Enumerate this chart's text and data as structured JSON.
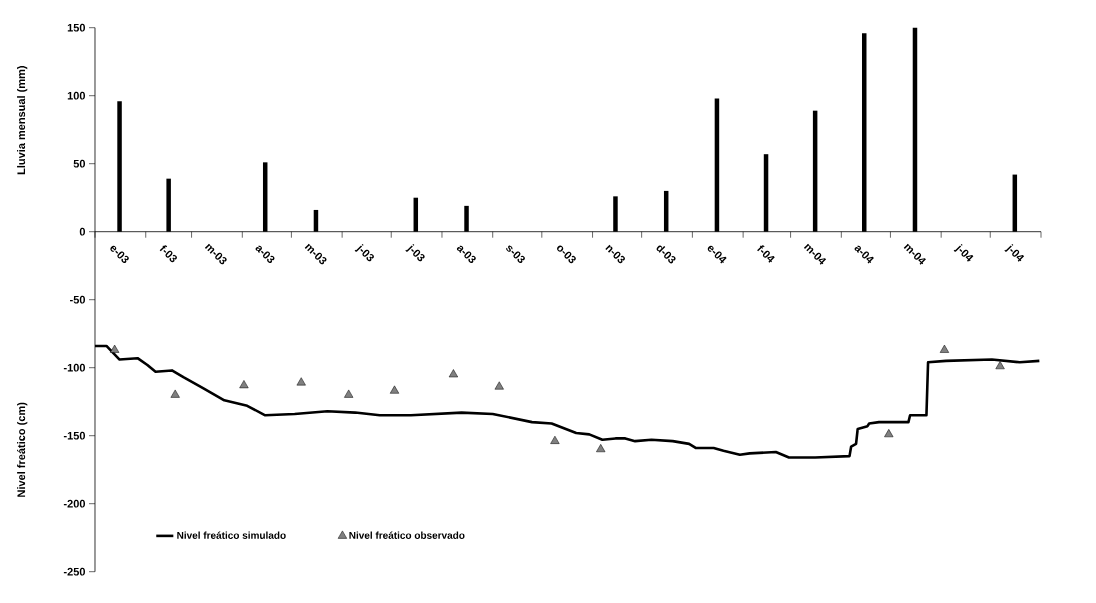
{
  "chart_data": {
    "type": "bar",
    "ylabel": "Lluvia mensual (mm)",
    "annotations": [
      "Nivel freático (cm)"
    ],
    "x": [
      "2003-01-16",
      "2003-02-15",
      "2003-03-16",
      "2003-04-15",
      "2003-05-16",
      "2003-06-15",
      "2003-07-16",
      "2003-08-16",
      "2003-09-15",
      "2003-10-16",
      "2003-11-15",
      "2003-12-16",
      "2004-01-16",
      "2004-02-15",
      "2004-03-16",
      "2004-04-15",
      "2004-05-16",
      "2004-06-15",
      "2004-07-16"
    ],
    "xlim": [
      "2003-01-01",
      "2004-08-01"
    ],
    "xticks": [
      {
        "value": "2003-01-01",
        "label": null
      },
      {
        "value": "2003-01-16",
        "label": "e-03"
      },
      {
        "value": "2003-02-01",
        "label": null
      },
      {
        "value": "2003-02-15",
        "label": "f-03"
      },
      {
        "value": "2003-03-01",
        "label": null
      },
      {
        "value": "2003-03-16",
        "label": "m-03"
      },
      {
        "value": "2003-04-01",
        "label": null
      },
      {
        "value": "2003-04-15",
        "label": "a-03"
      },
      {
        "value": "2003-05-01",
        "label": null
      },
      {
        "value": "2003-05-16",
        "label": "m-03"
      },
      {
        "value": "2003-06-01",
        "label": null
      },
      {
        "value": "2003-06-15",
        "label": "j-03"
      },
      {
        "value": "2003-07-01",
        "label": null
      },
      {
        "value": "2003-07-16",
        "label": "j-03"
      },
      {
        "value": "2003-08-01",
        "label": null
      },
      {
        "value": "2003-08-16",
        "label": "a-03"
      },
      {
        "value": "2003-09-01",
        "label": null
      },
      {
        "value": "2003-09-15",
        "label": "s-03"
      },
      {
        "value": "2003-10-01",
        "label": null
      },
      {
        "value": "2003-10-16",
        "label": "o-03"
      },
      {
        "value": "2003-11-01",
        "label": null
      },
      {
        "value": "2003-11-15",
        "label": "n-03"
      },
      {
        "value": "2003-12-01",
        "label": null
      },
      {
        "value": "2003-12-16",
        "label": "d-03"
      },
      {
        "value": "2004-01-01",
        "label": null
      },
      {
        "value": "2004-01-16",
        "label": "e-04"
      },
      {
        "value": "2004-02-01",
        "label": null
      },
      {
        "value": "2004-02-15",
        "label": "f-04"
      },
      {
        "value": "2004-03-01",
        "label": null
      },
      {
        "value": "2004-03-16",
        "label": "m-04"
      },
      {
        "value": "2004-04-01",
        "label": null
      },
      {
        "value": "2004-04-15",
        "label": "a-04"
      },
      {
        "value": "2004-05-01",
        "label": null
      },
      {
        "value": "2004-05-16",
        "label": "m-04"
      },
      {
        "value": "2004-06-01",
        "label": null
      },
      {
        "value": "2004-06-15",
        "label": "j-04"
      },
      {
        "value": "2004-07-01",
        "label": null
      },
      {
        "value": "2004-07-16",
        "label": "j-04"
      },
      {
        "value": "2004-08-01",
        "label": null
      }
    ],
    "ylim": [
      -250,
      150
    ],
    "yticks": [
      -250,
      -200,
      -150,
      -100,
      -50,
      0,
      50,
      100,
      150
    ],
    "legend": "bottom left",
    "series": [
      {
        "color": "#000000",
        "values": [
          96,
          39,
          0,
          51,
          16,
          0,
          25,
          19,
          0,
          0,
          26,
          30,
          98,
          57,
          89,
          146,
          150,
          0,
          42
        ]
      },
      {
        "type": "line",
        "name": "Nivel freático simulado",
        "color": "#000000",
        "line_style": "solid",
        "x": [
          "2003-01-01",
          "2003-01-08",
          "2003-01-16",
          "2003-01-27",
          "2003-02-02",
          "2003-02-07",
          "2003-02-17",
          "2003-02-24",
          "2003-03-08",
          "2003-03-21",
          "2003-04-04",
          "2003-04-15",
          "2003-05-03",
          "2003-05-23",
          "2003-06-09",
          "2003-06-24",
          "2003-07-13",
          "2003-08-13",
          "2003-09-01",
          "2003-09-13",
          "2003-09-25",
          "2003-10-07",
          "2003-10-22",
          "2003-10-30",
          "2003-11-07",
          "2003-11-15",
          "2003-11-21",
          "2003-11-27",
          "2003-12-07",
          "2003-12-20",
          "2003-12-30",
          "2004-01-03",
          "2004-01-14",
          "2004-01-20",
          "2004-01-30",
          "2004-02-05",
          "2004-02-21",
          "2004-02-29",
          "2004-03-16",
          "2004-04-06",
          "2004-04-07",
          "2004-04-10",
          "2004-04-11",
          "2004-04-17",
          "2004-04-18",
          "2004-04-24",
          "2004-05-12",
          "2004-05-13",
          "2004-05-23",
          "2004-05-24",
          "2004-06-04",
          "2004-07-02",
          "2004-07-19",
          "2004-07-31"
        ],
        "values": [
          -84,
          -84,
          -94,
          -93,
          -98,
          -103,
          -102,
          -107,
          -115,
          -124,
          -128,
          -135,
          -134,
          -132,
          -133,
          -135,
          -135,
          -133,
          -134,
          -137,
          -140,
          -141,
          -148,
          -149,
          -153,
          -152,
          -152,
          -154,
          -153,
          -154,
          -156,
          -159,
          -159,
          -161,
          -164,
          -163,
          -162,
          -166,
          -166,
          -165,
          -158,
          -156,
          -145,
          -143,
          -141,
          -140,
          -140,
          -135,
          -135,
          -96,
          -95,
          -94,
          -96,
          -95
        ]
      },
      {
        "type": "scatter",
        "name": "Nivel freático observado",
        "color": "#808080",
        "marker": "triangle",
        "x": [
          "2003-01-13",
          "2003-02-19",
          "2003-04-02",
          "2003-05-07",
          "2003-06-05",
          "2003-07-03",
          "2003-08-08",
          "2003-09-05",
          "2003-10-09",
          "2003-11-06",
          "2004-04-30",
          "2004-06-03",
          "2004-07-07"
        ],
        "values": [
          -87,
          -120,
          -113,
          -111,
          -120,
          -117,
          -105,
          -114,
          -154,
          -160,
          -149,
          -87,
          -99
        ]
      }
    ]
  }
}
